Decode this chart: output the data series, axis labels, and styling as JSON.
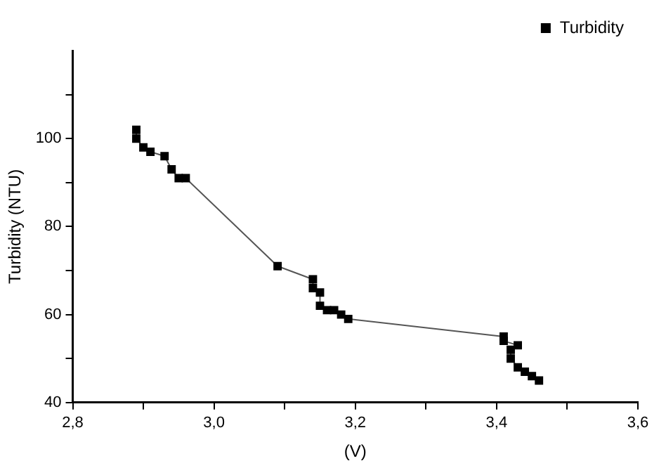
{
  "chart_data": {
    "type": "line",
    "xlabel": "(V)",
    "ylabel": "Turbidity (NTU)",
    "legend": "top right",
    "marker": "square",
    "line_style": "solid",
    "grid": false,
    "xlim": [
      2.8,
      3.6
    ],
    "xticks": [
      {
        "value": 2.8,
        "label": "2,8"
      },
      {
        "value": 2.9,
        "label": null
      },
      {
        "value": 3.0,
        "label": "3,0"
      },
      {
        "value": 3.1,
        "label": null
      },
      {
        "value": 3.2,
        "label": "3,2"
      },
      {
        "value": 3.3,
        "label": null
      },
      {
        "value": 3.4,
        "label": "3,4"
      },
      {
        "value": 3.5,
        "label": null
      },
      {
        "value": 3.6,
        "label": "3,6"
      }
    ],
    "ylim": [
      40,
      120
    ],
    "yticks": [
      40,
      {
        "value": 50,
        "label": null
      },
      60,
      {
        "value": 70,
        "label": null
      },
      80,
      {
        "value": 90,
        "label": null
      },
      100,
      {
        "value": 110,
        "label": null
      }
    ],
    "series": [
      {
        "name": "Turbidity",
        "color": "#000000",
        "x": [
          2.89,
          2.89,
          2.9,
          2.91,
          2.93,
          2.94,
          2.95,
          2.96,
          3.09,
          3.14,
          3.14,
          3.15,
          3.15,
          3.16,
          3.17,
          3.18,
          3.19,
          3.41,
          3.41,
          3.43,
          3.42,
          3.42,
          3.43,
          3.44,
          3.45,
          3.46
        ],
        "values": [
          102,
          100,
          98,
          97,
          96,
          93,
          91,
          91,
          71,
          68,
          66,
          65,
          62,
          61,
          61,
          60,
          59,
          55,
          54,
          53,
          52,
          50,
          48,
          47,
          46,
          45
        ]
      }
    ]
  }
}
